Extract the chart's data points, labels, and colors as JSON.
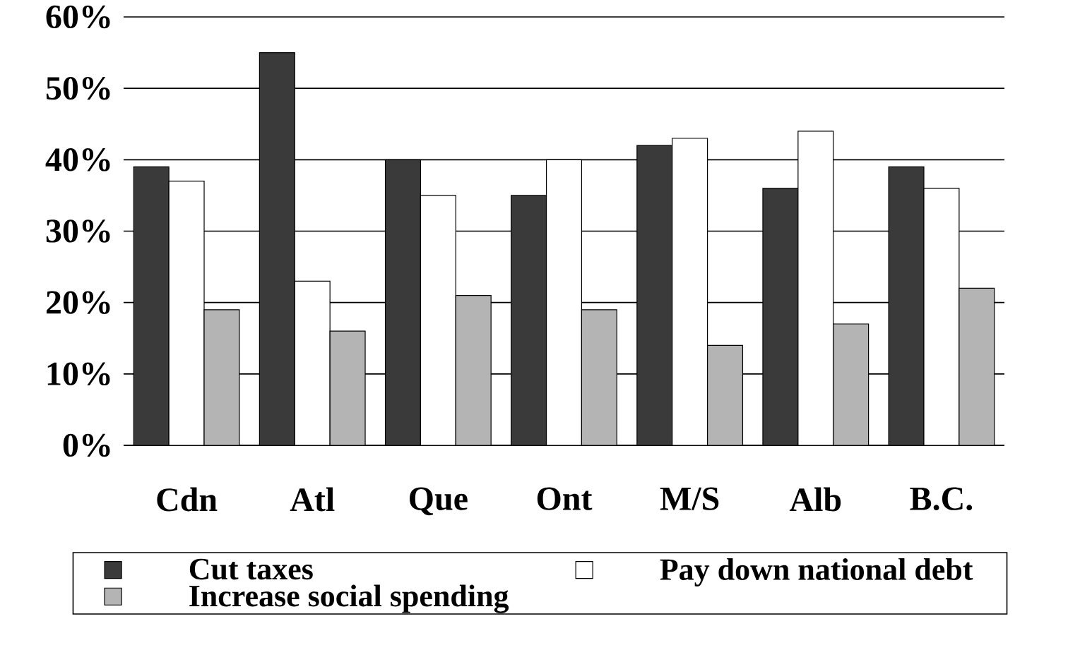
{
  "chart_data": {
    "type": "bar",
    "categories": [
      "Cdn",
      "Atl",
      "Que",
      "Ont",
      "M/S",
      "Alb",
      "B.C."
    ],
    "series": [
      {
        "name": "Cut taxes",
        "color": "#3a3a3a",
        "values": [
          39,
          55,
          40,
          35,
          42,
          36,
          39
        ]
      },
      {
        "name": "Pay down  national debt",
        "color": "#ffffff",
        "values": [
          37,
          23,
          35,
          40,
          43,
          44,
          36
        ]
      },
      {
        "name": "Increase social spending",
        "color": "#b4b4b4",
        "values": [
          19,
          16,
          21,
          19,
          14,
          17,
          22
        ]
      }
    ],
    "ylim": [
      0,
      60
    ],
    "yticks": [
      {
        "value": 0,
        "label": "0%"
      },
      {
        "value": 10,
        "label": "10%"
      },
      {
        "value": 20,
        "label": "20%"
      },
      {
        "value": 30,
        "label": "30%"
      },
      {
        "value": 40,
        "label": "40%"
      },
      {
        "value": 50,
        "label": "50%"
      },
      {
        "value": 60,
        "label": "60%"
      }
    ],
    "grid": "y",
    "legend": "bottom"
  }
}
